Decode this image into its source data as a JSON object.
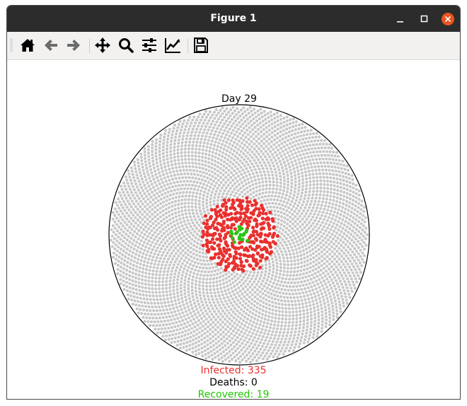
{
  "window": {
    "title": "Figure 1"
  },
  "toolbar": {
    "buttons": [
      {
        "icon": "home-icon"
      },
      {
        "icon": "back-arrow-icon"
      },
      {
        "icon": "forward-arrow-icon"
      },
      {
        "icon": "pan-move-icon"
      },
      {
        "icon": "zoom-magnifier-icon"
      },
      {
        "icon": "configure-subplots-icon"
      },
      {
        "icon": "edit-axis-curve-icon"
      },
      {
        "icon": "save-floppy-icon"
      }
    ]
  },
  "chart_data": {
    "type": "scatter",
    "title": "Day 29",
    "colors": {
      "susceptible": "#c8c8c8",
      "infected": "#e8312f",
      "recovered": "#2cc416",
      "boundary": "#000000"
    },
    "counts": {
      "infected": 335,
      "deaths": 0,
      "recovered": 19
    },
    "labels": {
      "infected": "Infected: 335",
      "deaths": "Deaths: 0",
      "recovered": "Recovered: 19"
    },
    "label_colors": {
      "infected": "#e8312f",
      "deaths": "#000000",
      "recovered": "#1ec800"
    },
    "axes_visible": false,
    "grid": false
  }
}
